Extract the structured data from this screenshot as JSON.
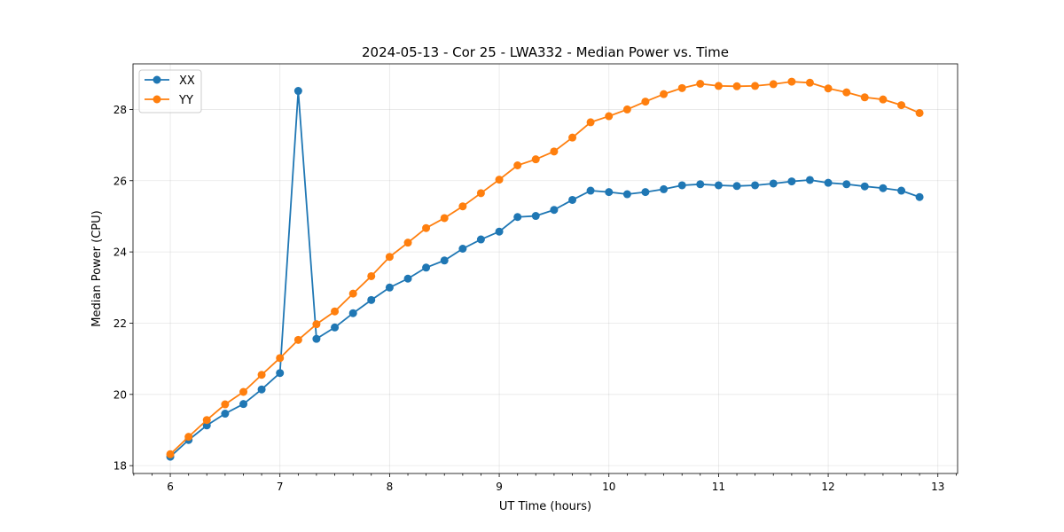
{
  "chart_data": {
    "type": "line",
    "title": "2024-05-13 - Cor 25 - LWA332 - Median Power vs. Time",
    "xlabel": "UT Time (hours)",
    "ylabel": "Median Power (CPU)",
    "xlim": [
      5.66,
      13.18
    ],
    "ylim": [
      17.78,
      29.28
    ],
    "grid": true,
    "legend_position": "top-left",
    "x_major_ticks": [
      6,
      7,
      8,
      9,
      10,
      11,
      12,
      13
    ],
    "x_tick_labels": [
      "6",
      "7",
      "8",
      "9",
      "10",
      "11",
      "12",
      "13"
    ],
    "x_minor_ticks": [
      5.667,
      5.833,
      6.167,
      6.333,
      6.5,
      6.667,
      6.833,
      7.167,
      7.333,
      7.5,
      7.667,
      7.833,
      8.167,
      8.333,
      8.5,
      8.667,
      8.833,
      9.167,
      9.333,
      9.5,
      9.667,
      9.833,
      10.167,
      10.333,
      10.5,
      10.667,
      10.833,
      11.167,
      11.333,
      11.5,
      11.667,
      11.833,
      12.167,
      12.333,
      12.5,
      12.667,
      12.833,
      13.167
    ],
    "y_major_ticks": [
      18,
      20,
      22,
      24,
      26,
      28
    ],
    "y_tick_labels": [
      "18",
      "20",
      "22",
      "24",
      "26",
      "28"
    ],
    "x": [
      6.0,
      6.167,
      6.333,
      6.5,
      6.667,
      6.833,
      7.0,
      7.167,
      7.333,
      7.5,
      7.667,
      7.833,
      8.0,
      8.167,
      8.333,
      8.5,
      8.667,
      8.833,
      9.0,
      9.167,
      9.333,
      9.5,
      9.667,
      9.833,
      10.0,
      10.167,
      10.333,
      10.5,
      10.667,
      10.833,
      11.0,
      11.167,
      11.333,
      11.5,
      11.667,
      11.833,
      12.0,
      12.167,
      12.333,
      12.5,
      12.667,
      12.833
    ],
    "series": [
      {
        "name": "XX",
        "color": "#1f77b4",
        "values": [
          18.25,
          18.72,
          19.13,
          19.46,
          19.73,
          20.14,
          20.6,
          28.52,
          21.56,
          21.88,
          22.28,
          22.65,
          23.0,
          23.25,
          23.56,
          23.76,
          24.09,
          24.35,
          24.57,
          24.98,
          25.01,
          25.18,
          25.46,
          25.72,
          25.68,
          25.62,
          25.68,
          25.76,
          25.87,
          25.9,
          25.87,
          25.85,
          25.87,
          25.92,
          25.98,
          26.02,
          25.94,
          25.9,
          25.84,
          25.79,
          25.72,
          25.54
        ]
      },
      {
        "name": "YY",
        "color": "#ff7f0e",
        "values": [
          18.32,
          18.81,
          19.28,
          19.72,
          20.07,
          20.55,
          21.02,
          21.53,
          21.97,
          22.33,
          22.83,
          23.32,
          23.86,
          24.26,
          24.67,
          24.95,
          25.28,
          25.65,
          26.03,
          26.43,
          26.6,
          26.82,
          27.21,
          27.64,
          27.81,
          28.0,
          28.22,
          28.43,
          28.6,
          28.72,
          28.66,
          28.65,
          28.66,
          28.71,
          28.78,
          28.75,
          28.59,
          28.48,
          28.34,
          28.28,
          28.12,
          27.9
        ]
      }
    ]
  }
}
